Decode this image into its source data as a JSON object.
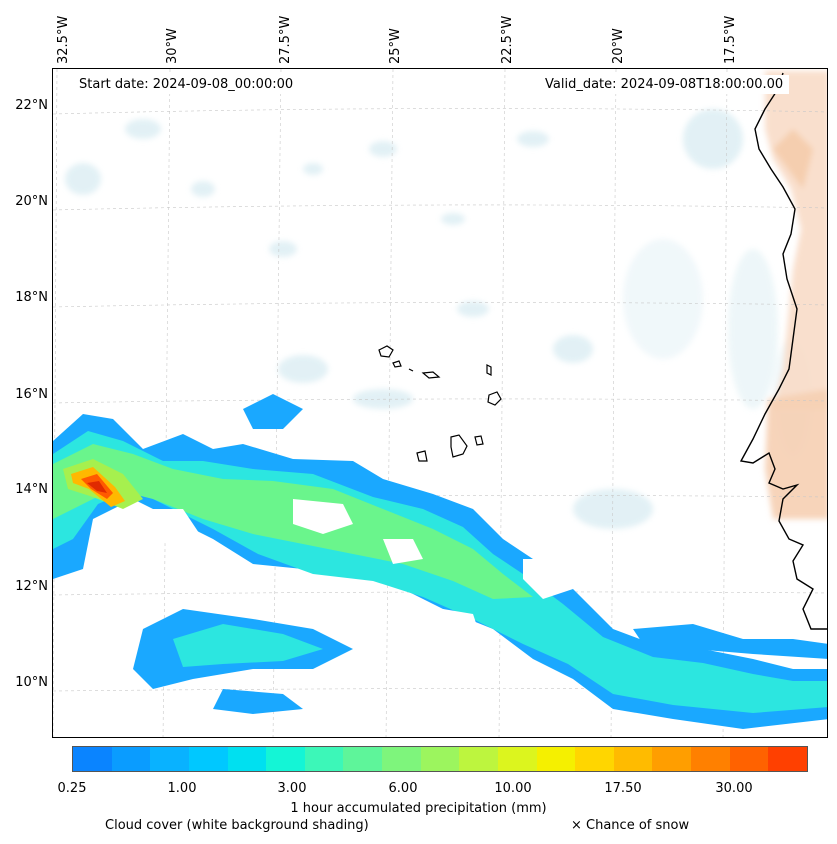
{
  "header": {
    "start_date": "Start date: 2024-09-08_00:00:00",
    "valid_date": "Valid_date: 2024-09-08T18:00:00.00"
  },
  "map": {
    "lon_labels": [
      "32.5°W",
      "30°W",
      "27.5°W",
      "25°W",
      "22.5°W",
      "20°W",
      "17.5°W"
    ],
    "lat_labels": [
      "22°N",
      "20°N",
      "18°N",
      "16°N",
      "14°N",
      "12°N",
      "10°N"
    ],
    "extent": {
      "lon_min": -32.7,
      "lon_max": -15.4,
      "lat_min": 8.9,
      "lat_max": 22.8
    }
  },
  "colorbar": {
    "colors": [
      "#0a84ff",
      "#0a9cff",
      "#09b2ff",
      "#00c8ff",
      "#00e0f0",
      "#14f5d6",
      "#3cf7b8",
      "#5ef59a",
      "#7ef57c",
      "#9cf55e",
      "#bdf53e",
      "#dcf51e",
      "#f5f000",
      "#ffd600",
      "#ffbb00",
      "#ff9e00",
      "#ff8000",
      "#ff6200",
      "#ff4000"
    ],
    "ticks": [
      "0.25",
      "1.00",
      "3.00",
      "6.00",
      "10.00",
      "17.50",
      "30.00"
    ],
    "label": "1 hour accumulated precipitation (mm)"
  },
  "footer": {
    "cloud_cover": "Cloud cover (white background shading)",
    "snow": "× Chance of snow"
  }
}
